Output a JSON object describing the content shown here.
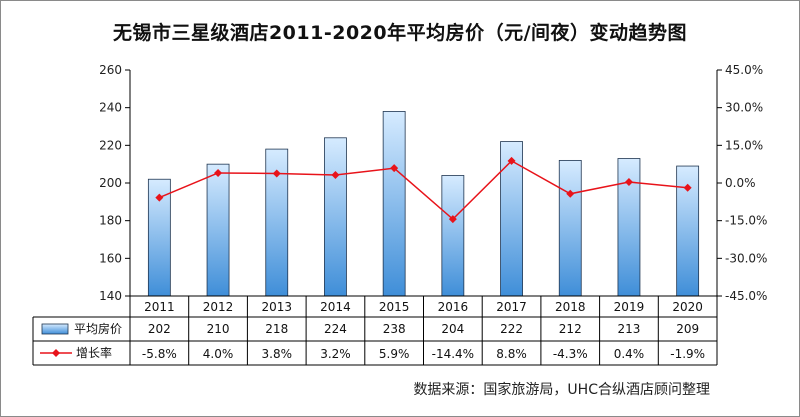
{
  "title": "无锡市三星级酒店2011-2020年平均房价（元/间夜）变动趋势图",
  "source": "数据来源：国家旅游局，UHC合纵酒店顾问整理",
  "colors": {
    "bar_top": "#d6ebff",
    "bar_bottom": "#3f8ed8",
    "bar_stroke": "#1f3550",
    "line": "#e8131a"
  },
  "chart_data": {
    "type": "bar",
    "title": "无锡市三星级酒店2011-2020年平均房价（元/间夜）变动趋势图",
    "categories": [
      "2011",
      "2012",
      "2013",
      "2014",
      "2015",
      "2016",
      "2017",
      "2018",
      "2019",
      "2020"
    ],
    "series": [
      {
        "name": "平均房价",
        "type": "bar",
        "axis": "left",
        "values": [
          202,
          210,
          218,
          224,
          238,
          204,
          222,
          212,
          213,
          209
        ]
      },
      {
        "name": "增长率",
        "type": "line",
        "axis": "right",
        "values": [
          -5.8,
          4.0,
          3.8,
          3.2,
          5.9,
          -14.4,
          8.8,
          -4.3,
          0.4,
          -1.9
        ]
      }
    ],
    "y_left": {
      "range": [
        140,
        260
      ],
      "ticks": [
        "140",
        "160",
        "180",
        "200",
        "220",
        "240",
        "260"
      ]
    },
    "y_right": {
      "range": [
        -45,
        45
      ],
      "ticks": [
        "-45.0%",
        "-30.0%",
        "-15.0%",
        "0.0%",
        "15.0%",
        "30.0%",
        "45.0%"
      ]
    },
    "table_rows": {
      "bars": [
        "202",
        "210",
        "218",
        "224",
        "238",
        "204",
        "222",
        "212",
        "213",
        "209"
      ],
      "growth": [
        "-5.8%",
        "4.0%",
        "3.8%",
        "3.2%",
        "5.9%",
        "-14.4%",
        "8.8%",
        "-4.3%",
        "0.4%",
        "-1.9%"
      ]
    },
    "legend_placement": "data-table",
    "grid": false
  }
}
